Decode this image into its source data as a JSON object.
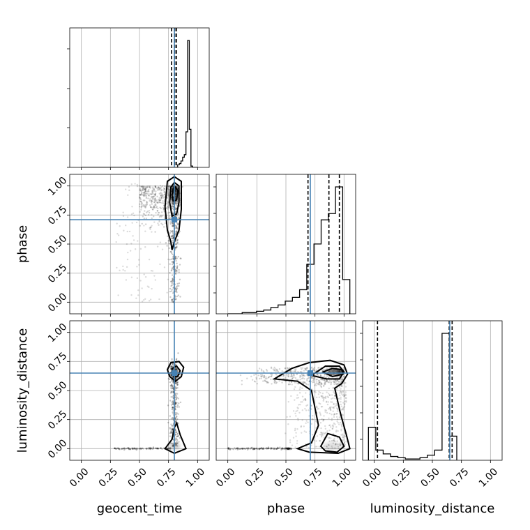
{
  "chart_data": {
    "type": "corner",
    "parameters": [
      "geocent_time",
      "phase",
      "luminosity_distance"
    ],
    "xlabels": [
      "geocent_time",
      "phase",
      "luminosity_distance"
    ],
    "ylabels": [
      "",
      "phase",
      "luminosity_distance"
    ],
    "ticks": [
      0.0,
      0.25,
      0.5,
      0.75,
      1.0
    ],
    "tick_labels": [
      "0.00",
      "0.25",
      "0.50",
      "0.75",
      "1.00"
    ],
    "lim": [
      -0.1,
      1.1
    ],
    "grid": true,
    "truths": [
      0.8,
      0.71,
      0.65
    ],
    "truth_color": "#4682b4",
    "hist_color": "#000000",
    "histograms": [
      {
        "parameter": "geocent_time",
        "range": [
          0.0,
          1.0
        ],
        "counts": [
          0,
          0,
          0,
          0,
          0,
          0,
          0,
          0,
          0,
          0,
          0,
          0,
          0,
          0,
          0,
          0,
          0,
          0,
          0,
          0,
          0,
          0,
          0,
          0,
          0,
          0,
          0,
          0,
          0,
          0,
          0,
          0,
          0,
          0,
          0,
          0,
          0,
          0,
          0,
          0,
          0,
          0,
          0,
          0,
          0,
          0,
          0,
          0,
          0,
          0,
          0,
          0,
          0,
          0,
          0,
          0,
          0,
          0,
          0.02,
          0.03,
          0.05,
          0.08,
          0.1,
          0.28,
          1.0,
          0.3,
          0.01,
          0,
          0,
          0
        ],
        "quantiles": [
          0.776,
          0.804,
          0.818
        ]
      },
      {
        "parameter": "phase",
        "range": [
          0.0,
          1.05
        ],
        "counts": [
          0.0,
          0.0,
          0.01,
          0.01,
          0.02,
          0.03,
          0.05,
          0.07,
          0.1,
          0.13,
          0.19,
          0.39,
          0.55,
          0.74,
          0.79,
          1.0,
          0.27
        ],
        "quantiles": [
          0.69,
          0.87,
          0.96
        ]
      },
      {
        "parameter": "luminosity_distance",
        "range": [
          -0.05,
          0.71
        ],
        "counts": [
          0.26,
          0.08,
          0.05,
          0.03,
          0.02,
          0.01,
          0.01,
          0.02,
          0.04,
          0.08,
          1.0,
          0.19
        ],
        "quantiles": [
          0.028,
          0.645,
          0.67
        ]
      }
    ],
    "panels_2d": [
      {
        "x": "geocent_time",
        "y": "phase"
      },
      {
        "x": "geocent_time",
        "y": "luminosity_distance"
      },
      {
        "x": "phase",
        "y": "luminosity_distance"
      }
    ]
  }
}
